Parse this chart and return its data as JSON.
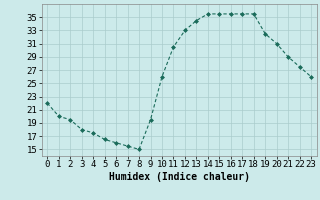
{
  "x": [
    0,
    1,
    2,
    3,
    4,
    5,
    6,
    7,
    8,
    9,
    10,
    11,
    12,
    13,
    14,
    15,
    16,
    17,
    18,
    19,
    20,
    21,
    22,
    23
  ],
  "y": [
    22,
    20,
    19.5,
    18,
    17.5,
    16.5,
    16,
    15.5,
    15,
    19.5,
    26,
    30.5,
    33,
    34.5,
    35.5,
    35.5,
    35.5,
    35.5,
    35.5,
    32.5,
    31,
    29,
    27.5,
    26
  ],
  "line_color": "#1a6b5a",
  "marker": "D",
  "marker_size": 2,
  "bg_color": "#cceaea",
  "grid_color": "#aacccc",
  "xlabel": "Humidex (Indice chaleur)",
  "xlabel_fontsize": 7,
  "xlim": [
    -0.5,
    23.5
  ],
  "ylim": [
    14,
    37
  ],
  "yticks": [
    15,
    17,
    19,
    21,
    23,
    25,
    27,
    29,
    31,
    33,
    35
  ],
  "xticks": [
    0,
    1,
    2,
    3,
    4,
    5,
    6,
    7,
    8,
    9,
    10,
    11,
    12,
    13,
    14,
    15,
    16,
    17,
    18,
    19,
    20,
    21,
    22,
    23
  ],
  "tick_fontsize": 6.5
}
